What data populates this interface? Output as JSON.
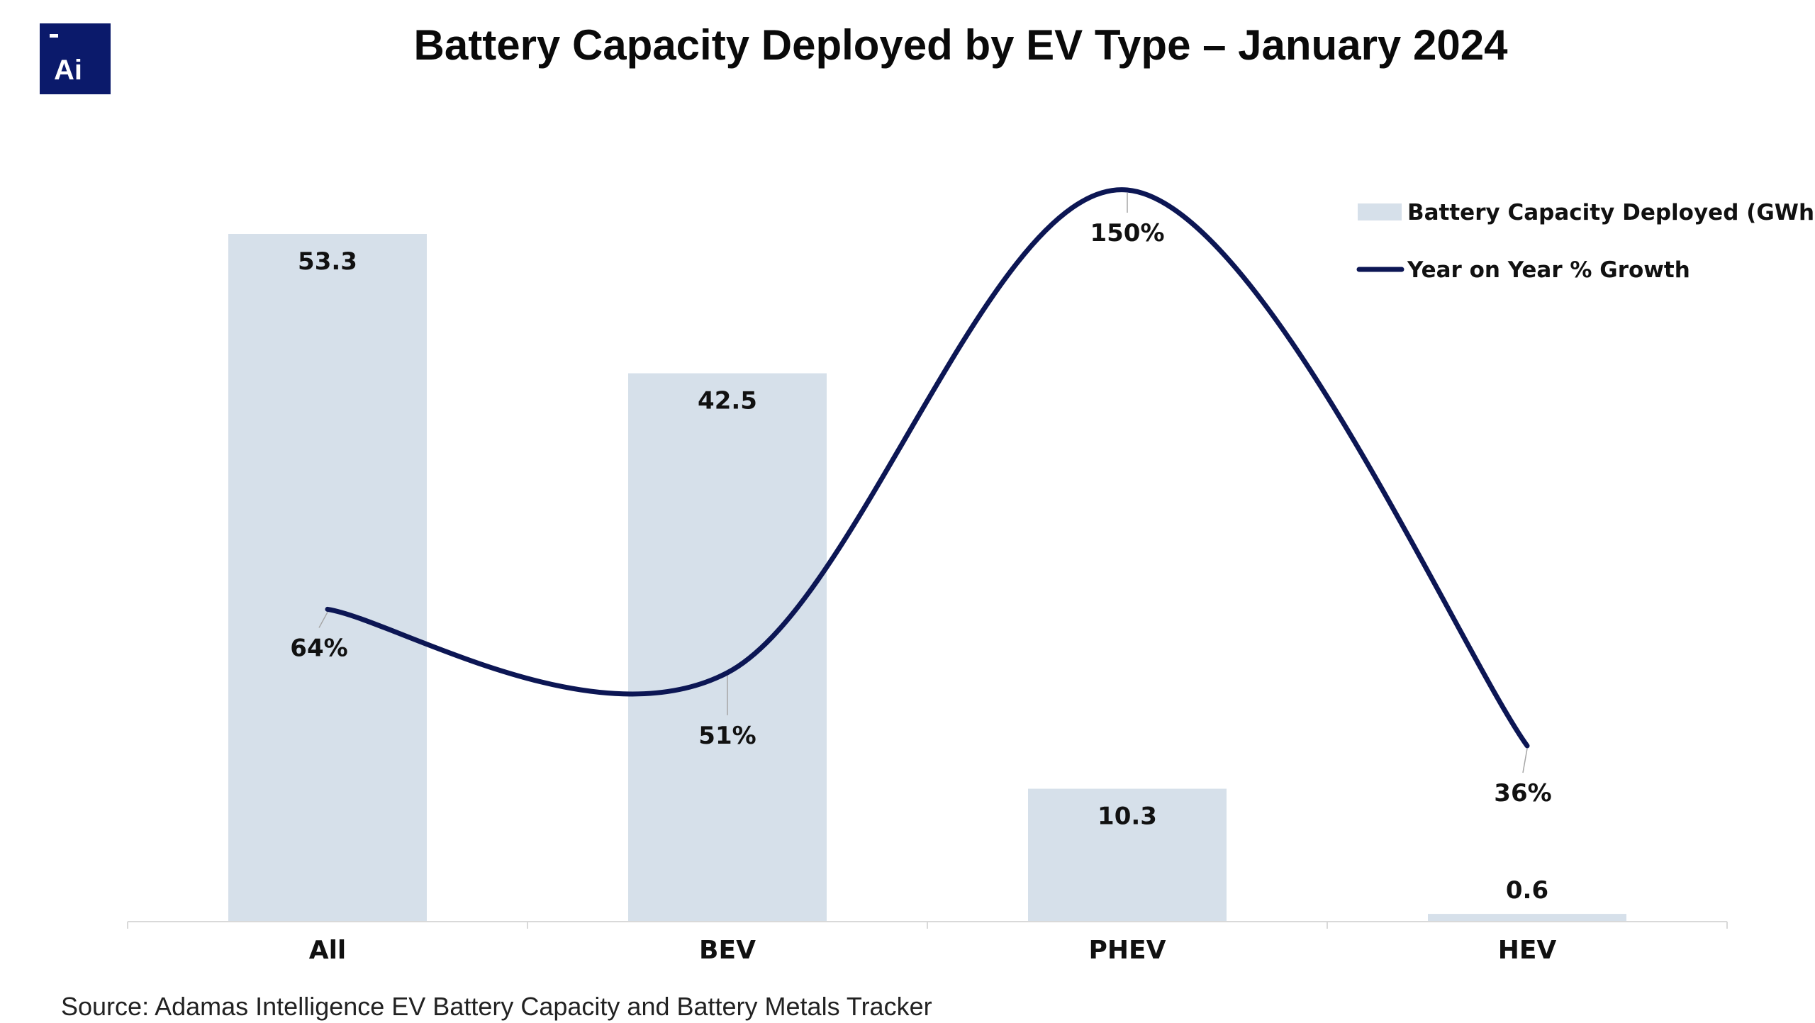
{
  "logo": {
    "text": "Ai",
    "background_color": "#0b1a6b"
  },
  "title": "Battery Capacity Deployed by EV Type – January 2024",
  "source": "Source: Adamas Intelligence EV Battery Capacity and Battery Metals Tracker",
  "colors": {
    "bar": "#d6e0ea",
    "line": "#0c1654",
    "axis": "#d9d9d9",
    "leader": "#a6a6a6"
  },
  "legend": {
    "position": "top-right",
    "items": [
      {
        "label": "Battery Capacity Deployed (GWh)",
        "kind": "bar"
      },
      {
        "label": "Year on Year % Growth",
        "kind": "line"
      }
    ]
  },
  "chart_data": {
    "type": "bar",
    "categories": [
      "All",
      "BEV",
      "PHEV",
      "HEV"
    ],
    "series": [
      {
        "name": "Battery Capacity Deployed (GWh)",
        "type": "bar",
        "values": [
          53.3,
          42.5,
          10.3,
          0.6
        ],
        "labels": [
          "53.3",
          "42.5",
          "10.3",
          "0.6"
        ]
      },
      {
        "name": "Year on Year % Growth",
        "type": "line",
        "smooth": true,
        "values": [
          64,
          51,
          150,
          36
        ],
        "labels": [
          "64%",
          "51%",
          "150%",
          "36%"
        ]
      }
    ],
    "title": "Battery Capacity Deployed by EV Type – January 2024",
    "xlabel": "",
    "ylabel": "",
    "ylim": [
      0,
      55
    ],
    "y2lim": [
      0,
      155
    ],
    "grid": false,
    "legend_position": "top-right"
  }
}
